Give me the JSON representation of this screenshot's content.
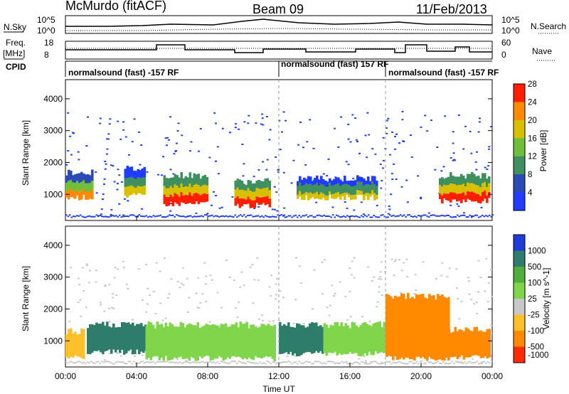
{
  "header": {
    "station": "McMurdo (fitACF)",
    "beam": "Beam 09",
    "date": "11/Feb/2013"
  },
  "top_panels": {
    "nsky_label": "N.Sky",
    "nsearch_label": "N.Search",
    "freq_label_1": "Freq.",
    "freq_label_2": "[MHz]",
    "nave_label": "Nave",
    "cpid_label": "CPID",
    "noise_axis_labels": [
      "10^5",
      "10^0"
    ],
    "freq_axis_labels": [
      "18",
      "8"
    ],
    "nave_axis_labels": [
      "60",
      "0"
    ],
    "cpid_segments": [
      {
        "start_hour": 0,
        "label": "normalsound (fast) -157 RF"
      },
      {
        "start_hour": 12,
        "label": "normalsound (fast) 157 RF"
      },
      {
        "start_hour": 18,
        "label": "normalsound (fast) -157 RF"
      }
    ]
  },
  "chart_data": [
    {
      "type": "heatmap",
      "title": "",
      "xlabel": "Time UT",
      "ylabel": "Slant Range [km]",
      "x_ticks": [
        "00:00",
        "04:00",
        "08:00",
        "12:00",
        "16:00",
        "20:00",
        "00:00"
      ],
      "x_range_hours": [
        0,
        24
      ],
      "y_ticks": [
        1000,
        2000,
        3000,
        4000
      ],
      "ylim": [
        180,
        4600
      ],
      "colorbar": {
        "label": "Power [dB]",
        "ticks": [
          4,
          8,
          12,
          16,
          20,
          24,
          28
        ],
        "colors": [
          "#1f3cff",
          "#2a4bb5",
          "#3f8f5f",
          "#6fbf3a",
          "#d8c000",
          "#ff8a00",
          "#ff1e00"
        ]
      },
      "bands": [
        {
          "start": 0.0,
          "end": 1.5,
          "lo": 900,
          "hi": 1700,
          "level": 5
        },
        {
          "start": 3.3,
          "end": 4.4,
          "lo": 950,
          "hi": 1800,
          "level": 4
        },
        {
          "start": 5.5,
          "end": 8.0,
          "lo": 700,
          "hi": 1600,
          "level": 6
        },
        {
          "start": 9.5,
          "end": 11.5,
          "lo": 650,
          "hi": 1400,
          "level": 6
        },
        {
          "start": 13.0,
          "end": 17.5,
          "lo": 900,
          "hi": 1500,
          "level": 4
        },
        {
          "start": 21.0,
          "end": 23.8,
          "lo": 800,
          "hi": 1600,
          "level": 6
        }
      ]
    },
    {
      "type": "heatmap",
      "title": "",
      "xlabel": "Time UT",
      "ylabel": "Slant Range [km]",
      "x_ticks": [
        "00:00",
        "04:00",
        "08:00",
        "12:00",
        "16:00",
        "20:00",
        "00:00"
      ],
      "x_range_hours": [
        0,
        24
      ],
      "y_ticks": [
        1000,
        2000,
        3000,
        4000
      ],
      "ylim": [
        180,
        4600
      ],
      "colorbar": {
        "label": "Velocity [m s^-1]",
        "ticks": [
          1000,
          500,
          100,
          25,
          -25,
          -100,
          -500,
          -1000
        ],
        "colors": [
          "#1f3cd8",
          "#2e7d6a",
          "#4fae3d",
          "#7fd64b",
          "#c8c8c8",
          "#ffc02a",
          "#ff8a00",
          "#ff2a00"
        ]
      },
      "regions": [
        {
          "start": 0.0,
          "end": 1.0,
          "lo": 500,
          "hi": 1300,
          "color": 5
        },
        {
          "start": 1.2,
          "end": 4.5,
          "lo": 650,
          "hi": 1500,
          "color": 1
        },
        {
          "start": 4.5,
          "end": 11.8,
          "lo": 450,
          "hi": 1500,
          "color": 3
        },
        {
          "start": 12.0,
          "end": 14.5,
          "lo": 600,
          "hi": 1500,
          "color": 1
        },
        {
          "start": 14.5,
          "end": 18.0,
          "lo": 600,
          "hi": 1500,
          "color": 3
        },
        {
          "start": 18.0,
          "end": 21.5,
          "lo": 450,
          "hi": 2400,
          "color": 6
        },
        {
          "start": 21.5,
          "end": 23.8,
          "lo": 500,
          "hi": 1350,
          "color": 6
        }
      ]
    }
  ]
}
